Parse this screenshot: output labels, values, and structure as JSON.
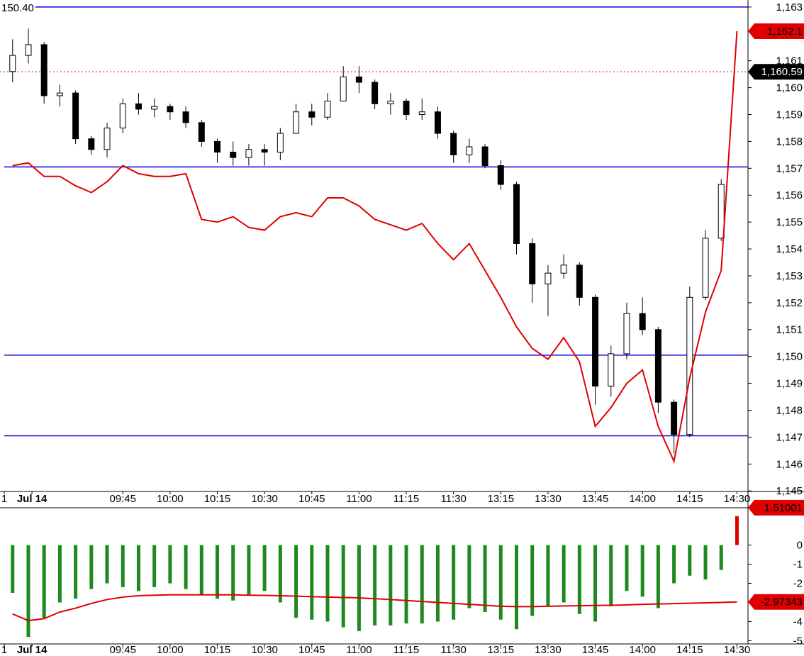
{
  "chart_data": [
    {
      "type": "candlestick",
      "annotation": "150.40",
      "xlim": [
        -0.8,
        46.7
      ],
      "xticks": [
        {
          "value": -0.53,
          "label": "1"
        },
        {
          "value": 1.23,
          "label": "Jul 14"
        },
        {
          "value": 7,
          "label": "09:45"
        },
        {
          "value": 10,
          "label": "10:00"
        },
        {
          "value": 13,
          "label": "10:15"
        },
        {
          "value": 16,
          "label": "10:30"
        },
        {
          "value": 19,
          "label": "10:45"
        },
        {
          "value": 22,
          "label": "11:00"
        },
        {
          "value": 25,
          "label": "11:15"
        },
        {
          "value": 28,
          "label": "11:30"
        },
        {
          "value": 31,
          "label": "13:15"
        },
        {
          "value": 34,
          "label": "13:30"
        },
        {
          "value": 37,
          "label": "13:45"
        },
        {
          "value": 40,
          "label": "14:00"
        },
        {
          "value": 43,
          "label": "14:15"
        },
        {
          "value": 46,
          "label": "14:30"
        }
      ],
      "ylim": [
        1144.98,
        1163.26
      ],
      "yticks": [
        {
          "value": 1145,
          "label": "1,145"
        },
        {
          "value": 1146,
          "label": "1,146"
        },
        {
          "value": 1147,
          "label": "1,147"
        },
        {
          "value": 1148,
          "label": "1,148"
        },
        {
          "value": 1149,
          "label": "1,149"
        },
        {
          "value": 1150,
          "label": "1,150"
        },
        {
          "value": 1151,
          "label": "1,151"
        },
        {
          "value": 1152,
          "label": "1,152"
        },
        {
          "value": 1153,
          "label": "1,153"
        },
        {
          "value": 1154,
          "label": "1,154"
        },
        {
          "value": 1155,
          "label": "1,155"
        },
        {
          "value": 1156,
          "label": "1,156"
        },
        {
          "value": 1157,
          "label": "1,157"
        },
        {
          "value": 1158,
          "label": "1,158"
        },
        {
          "value": 1159,
          "label": "1,159"
        },
        {
          "value": 1160,
          "label": "1,160"
        },
        {
          "value": 1161,
          "label": "1,161"
        },
        {
          "value": 1163,
          "label": "1,163"
        }
      ],
      "candles": {
        "up_color": "#ffffff",
        "down_color": "#000000",
        "open": [
          1160.6,
          1161.2,
          1161.6,
          1159.7,
          1159.8,
          1158.1,
          1157.7,
          1158.5,
          1159.4,
          1159.2,
          1159.3,
          1159.1,
          1158.7,
          1158.0,
          1157.6,
          1157.4,
          1157.7,
          1157.6,
          1158.3,
          1159.1,
          1158.9,
          1159.5,
          1160.4,
          1160.2,
          1159.4,
          1159.5,
          1159.0,
          1159.1,
          1158.3,
          1157.5,
          1157.8,
          1157.1,
          1156.4,
          1154.2,
          1152.7,
          1153.1,
          1153.4,
          1152.2,
          1148.9,
          1150.1,
          1151.6,
          1151.0,
          1148.3,
          1147.1,
          1152.2,
          1154.4,
          null
        ],
        "high": [
          1161.8,
          1162.2,
          1161.7,
          1160.1,
          1159.9,
          1158.2,
          1158.7,
          1159.6,
          1159.8,
          1159.6,
          1159.4,
          1159.3,
          1158.8,
          1158.1,
          1158.0,
          1157.9,
          1157.9,
          1158.5,
          1159.4,
          1159.4,
          1159.8,
          1160.8,
          1160.8,
          1160.3,
          1159.8,
          1159.6,
          1159.6,
          1159.3,
          1158.4,
          1158.1,
          1157.9,
          1157.3,
          1156.5,
          1154.4,
          1153.4,
          1153.8,
          1153.5,
          1152.3,
          1150.4,
          1152.0,
          1152.2,
          1151.1,
          1148.4,
          1152.6,
          1154.7,
          1156.6,
          null
        ],
        "low": [
          1160.2,
          1160.9,
          1159.4,
          1159.3,
          1157.9,
          1157.5,
          1157.4,
          1158.3,
          1159.0,
          1158.9,
          1158.8,
          1158.5,
          1157.8,
          1157.2,
          1157.1,
          1157.1,
          1157.1,
          1157.3,
          1158.3,
          1158.6,
          1158.8,
          1159.6,
          1159.8,
          1159.2,
          1159.0,
          1158.8,
          1158.8,
          1158.1,
          1157.2,
          1157.2,
          1157.0,
          1156.2,
          1153.8,
          1152.0,
          1151.5,
          1152.9,
          1151.9,
          1148.2,
          1148.5,
          1149.9,
          1150.8,
          1147.9,
          1146.4,
          1147.0,
          1152.1,
          1154.3,
          null
        ],
        "close": [
          1161.2,
          1161.6,
          1159.7,
          1159.8,
          1158.1,
          1157.7,
          1158.5,
          1159.4,
          1159.2,
          1159.3,
          1159.1,
          1158.7,
          1158.0,
          1157.6,
          1157.4,
          1157.7,
          1157.6,
          1158.3,
          1159.1,
          1158.9,
          1159.5,
          1160.4,
          1160.2,
          1159.4,
          1159.5,
          1159.0,
          1159.1,
          1158.3,
          1157.5,
          1157.8,
          1157.1,
          1156.4,
          1154.2,
          1152.7,
          1153.1,
          1153.4,
          1152.2,
          1148.9,
          1150.1,
          1151.6,
          1151.0,
          1148.3,
          1147.1,
          1152.2,
          1154.4,
          1156.4,
          null
        ]
      },
      "line": {
        "color": "#e00000",
        "values": [
          1157.1,
          1157.2,
          1156.7,
          1156.7,
          1156.35,
          1156.1,
          1156.5,
          1157.1,
          1156.8,
          1156.7,
          1156.7,
          1156.8,
          1155.1,
          1155.0,
          1155.2,
          1154.8,
          1154.7,
          1155.2,
          1155.35,
          1155.2,
          1155.9,
          1155.9,
          1155.6,
          1155.1,
          1154.9,
          1154.7,
          1154.95,
          1154.2,
          1153.6,
          1154.2,
          1153.2,
          1152.2,
          1151.1,
          1150.3,
          1149.9,
          1150.7,
          1149.8,
          1147.4,
          1148.1,
          1149.0,
          1149.5,
          1147.4,
          1146.1,
          1149.2,
          1151.65,
          1153.2,
          1162.1
        ],
        "value_labels": [
          null,
          null,
          null,
          null,
          null,
          null,
          null,
          null,
          null,
          null,
          null,
          null,
          null,
          null,
          null,
          null,
          null,
          null,
          null,
          null,
          null,
          null,
          null,
          null,
          null,
          null,
          null,
          null,
          null,
          null,
          null,
          null,
          null,
          null,
          null,
          null,
          null,
          null,
          null,
          null,
          null,
          null,
          null,
          null,
          null,
          null,
          "1,162.1"
        ]
      },
      "hlines": {
        "color": "#0000dd",
        "values": [
          1163,
          1157.05,
          1150.05,
          1147.05
        ]
      },
      "reference_line": {
        "value": 1160.59,
        "label": "1,160.59",
        "color": "#c00000"
      }
    },
    {
      "type": "bar",
      "xlim": [
        -0.8,
        46.7
      ],
      "xticks": [
        {
          "value": -0.53,
          "label": "1"
        },
        {
          "value": 1.23,
          "label": "Jul 14"
        },
        {
          "value": 7,
          "label": "09:45"
        },
        {
          "value": 10,
          "label": "10:00"
        },
        {
          "value": 13,
          "label": "10:15"
        },
        {
          "value": 16,
          "label": "10:30"
        },
        {
          "value": 19,
          "label": "10:45"
        },
        {
          "value": 22,
          "label": "11:00"
        },
        {
          "value": 25,
          "label": "11:15"
        },
        {
          "value": 28,
          "label": "11:30"
        },
        {
          "value": 31,
          "label": "13:15"
        },
        {
          "value": 34,
          "label": "13:30"
        },
        {
          "value": 37,
          "label": "13:45"
        },
        {
          "value": 40,
          "label": "14:00"
        },
        {
          "value": 43,
          "label": "14:15"
        },
        {
          "value": 46,
          "label": "14:30"
        }
      ],
      "ylim": [
        -5.17,
        1.95
      ],
      "yticks": [
        0,
        -1,
        -2,
        -4,
        -5
      ],
      "bars": {
        "negative_color": "#1e8a1e",
        "positive_color": "#e00000",
        "last_value_tag": true,
        "values": [
          -2.5,
          -4.8,
          -3.8,
          -3.0,
          -2.8,
          -2.3,
          -2.0,
          -2.2,
          -2.4,
          -2.2,
          -2.0,
          -2.3,
          -2.6,
          -2.8,
          -2.9,
          -2.6,
          -2.4,
          -3.0,
          -3.8,
          -3.9,
          -4.0,
          -4.3,
          -4.5,
          -4.2,
          -4.2,
          -4.1,
          -4.1,
          -4.0,
          -3.9,
          -3.3,
          -3.5,
          -3.9,
          -4.4,
          -3.7,
          -3.2,
          -3.0,
          -3.6,
          -4.0,
          -3.2,
          -2.4,
          -2.7,
          -3.3,
          -2.0,
          -1.6,
          -1.8,
          -1.3,
          1.51001
        ]
      },
      "line": {
        "color": "#e00000",
        "last_value_tag": true,
        "values": [
          -3.6,
          -3.95,
          -3.85,
          -3.5,
          -3.3,
          -3.05,
          -2.85,
          -2.72,
          -2.65,
          -2.62,
          -2.6,
          -2.6,
          -2.6,
          -2.6,
          -2.6,
          -2.62,
          -2.63,
          -2.65,
          -2.67,
          -2.7,
          -2.72,
          -2.74,
          -2.76,
          -2.8,
          -2.85,
          -2.9,
          -2.95,
          -3.0,
          -3.05,
          -3.1,
          -3.15,
          -3.2,
          -3.22,
          -3.22,
          -3.2,
          -3.18,
          -3.17,
          -3.16,
          -3.15,
          -3.13,
          -3.1,
          -3.08,
          -3.06,
          -3.04,
          -3.02,
          -3.0,
          -2.97343
        ]
      }
    }
  ]
}
